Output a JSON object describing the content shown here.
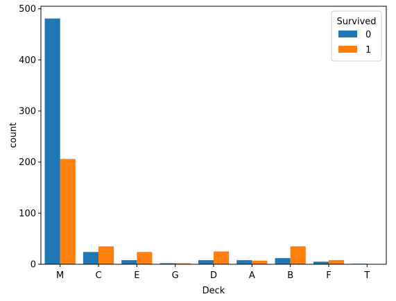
{
  "chart_data": {
    "type": "bar",
    "xlabel": "Deck",
    "ylabel": "count",
    "categories": [
      "M",
      "C",
      "E",
      "G",
      "D",
      "A",
      "B",
      "F",
      "T"
    ],
    "series": [
      {
        "name": "0",
        "color": "#1f77b4",
        "values": [
          481,
          24,
          8,
          2,
          8,
          8,
          12,
          5,
          1
        ]
      },
      {
        "name": "1",
        "color": "#ff7f0e",
        "values": [
          206,
          35,
          24,
          2,
          25,
          7,
          35,
          8,
          0
        ]
      }
    ],
    "ylim": [
      0,
      505
    ],
    "yticks": [
      0,
      100,
      200,
      300,
      400,
      500
    ],
    "legend": {
      "title": "Survived",
      "placement": "top-right"
    },
    "grid": false
  }
}
